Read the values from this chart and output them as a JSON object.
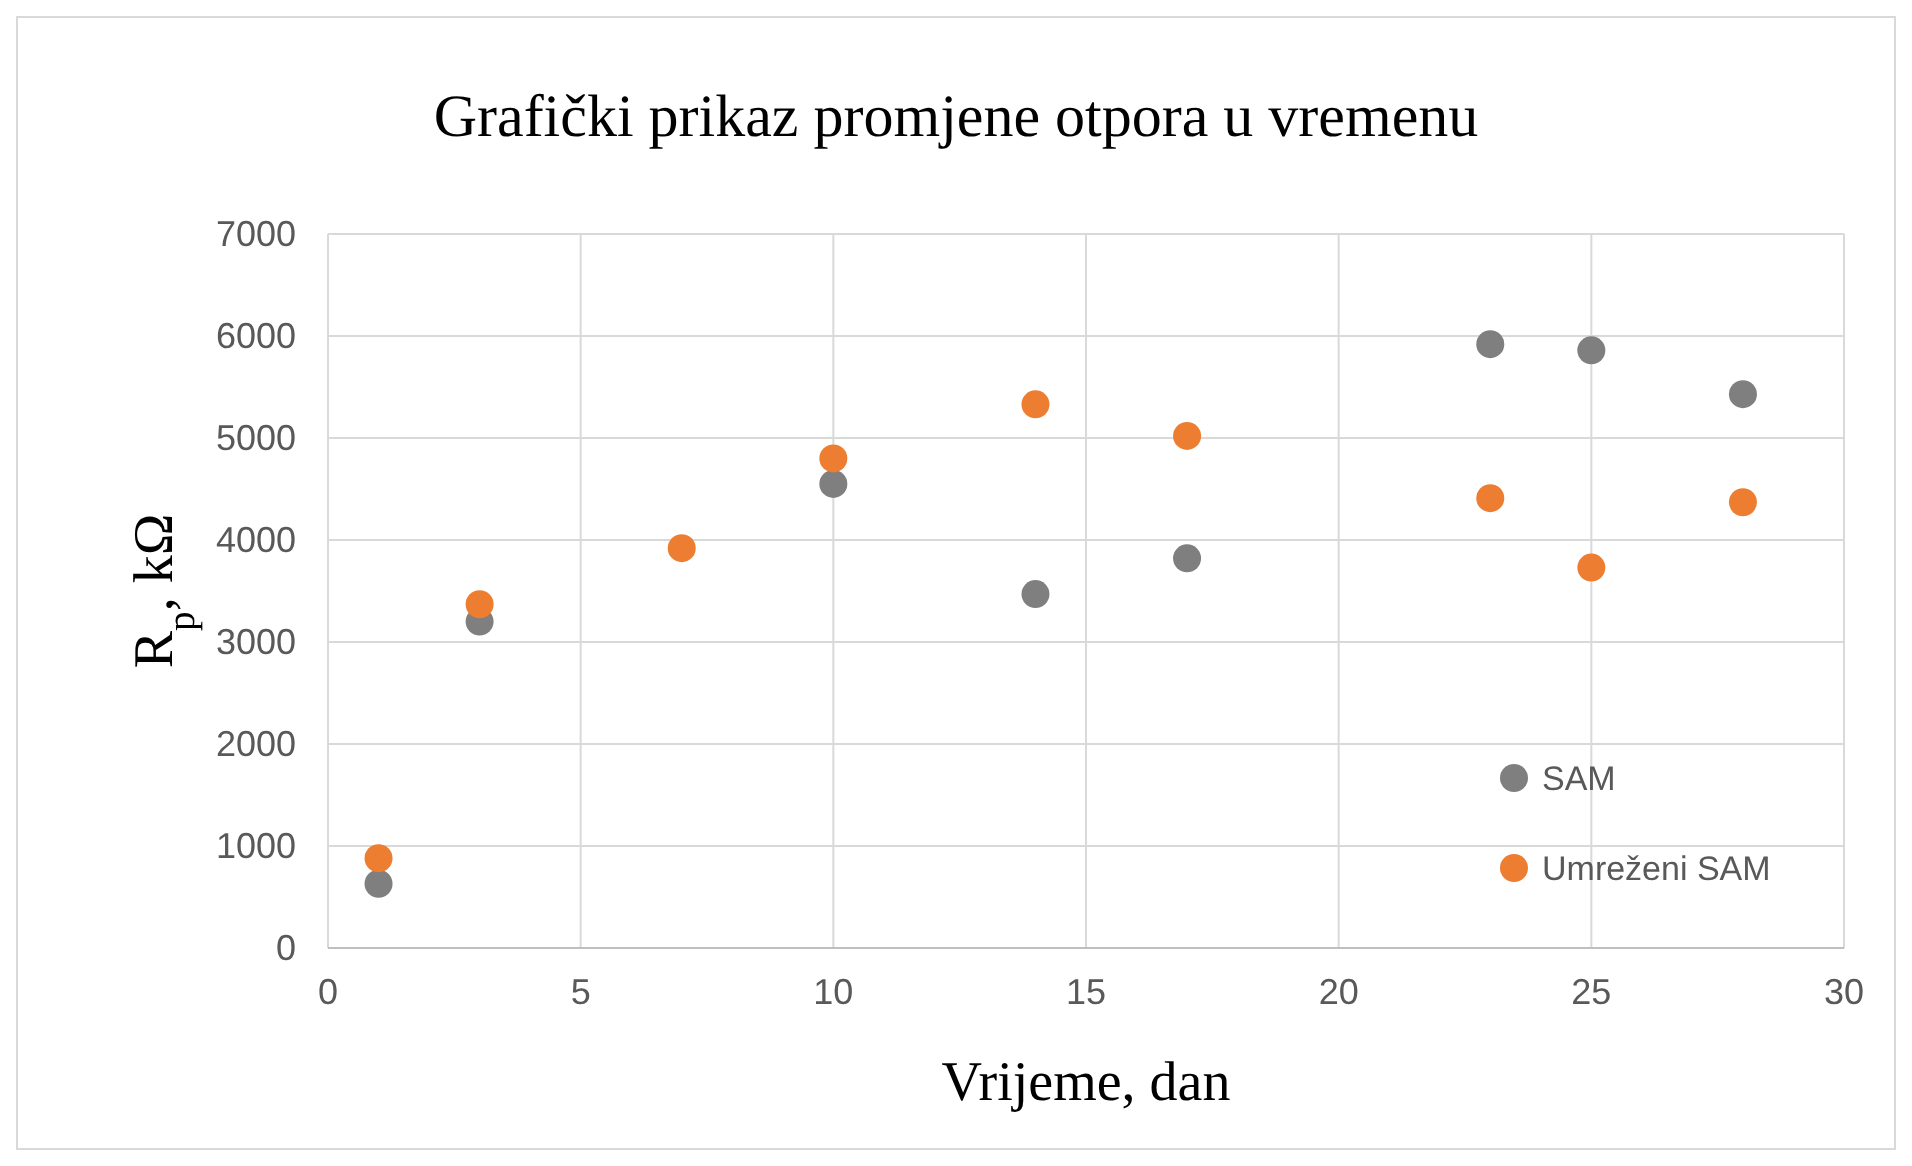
{
  "chart_data": {
    "type": "scatter",
    "title": "Grafički prikaz promjene otpora u vremenu",
    "xlabel": "Vrijeme, dan",
    "ylabel": "R$_{p}$, kΩ",
    "x": [
      1,
      3,
      7,
      10,
      14,
      17,
      23,
      25,
      28
    ],
    "series": [
      {
        "name": "SAM",
        "color": "#7f7f7f",
        "values": [
          630,
          3200,
          null,
          4550,
          3470,
          3820,
          5920,
          5860,
          5430
        ]
      },
      {
        "name": "Umreženi SAM",
        "color": "#ed7d31",
        "values": [
          880,
          3370,
          3920,
          4800,
          5330,
          5020,
          4410,
          3730,
          4370
        ]
      }
    ],
    "xlim": [
      0,
      30
    ],
    "xticks": [
      0,
      5,
      10,
      15,
      20,
      25,
      30
    ],
    "ylim": [
      0,
      7000
    ],
    "yticks": [
      0,
      1000,
      2000,
      3000,
      4000,
      5000,
      6000,
      7000
    ],
    "grid": true,
    "legend": "bottom right",
    "marker": "circle"
  }
}
